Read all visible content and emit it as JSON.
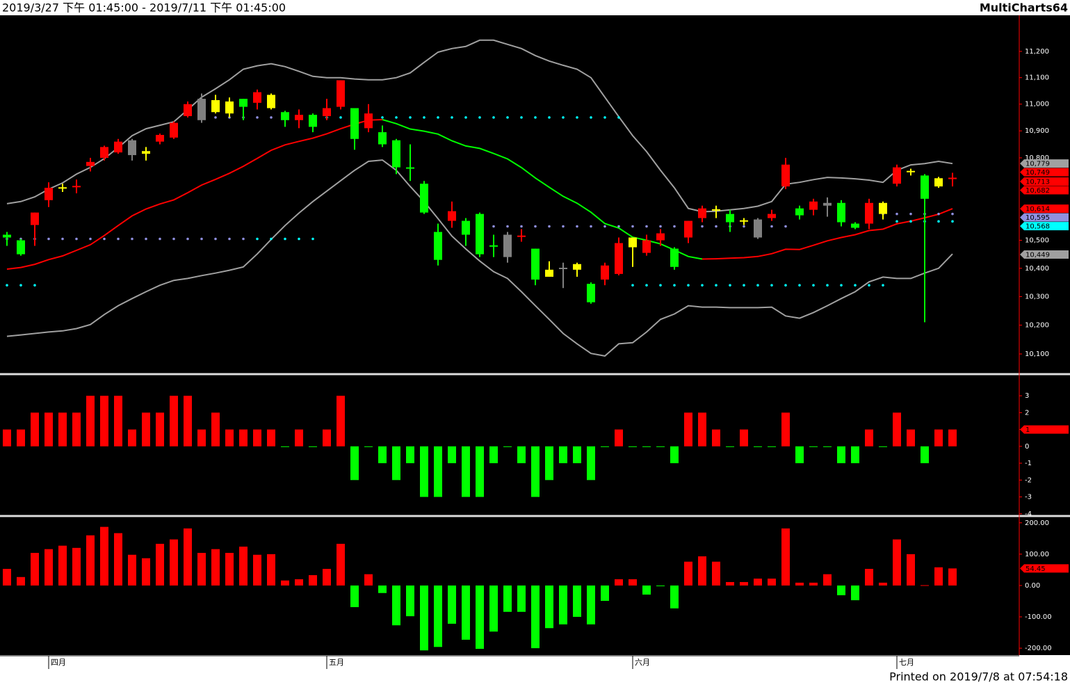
{
  "header": {
    "range": "2019/3/27 下午 01:45:00 - 2019/7/11 下午 01:45:00",
    "app": "MultiCharts64"
  },
  "footer": "Printed on 2019/7/8 at 07:54:18",
  "chart_data": [
    {
      "type": "candlestick",
      "log_scale": true,
      "categories": [
        null,
        null,
        null,
        null,
        null,
        null,
        null,
        null,
        null,
        null,
        null,
        null,
        null,
        null,
        null,
        null,
        null,
        null,
        null,
        null,
        null,
        null,
        null,
        null,
        null,
        null,
        null,
        null,
        null,
        null,
        null,
        null,
        null,
        null,
        null,
        null,
        null,
        null,
        null,
        null,
        null,
        null,
        null,
        null,
        null,
        null,
        null,
        null,
        null,
        null,
        null,
        null,
        null,
        null,
        null,
        null,
        null,
        null,
        null,
        null,
        null,
        null,
        null,
        null,
        null,
        null,
        null,
        null,
        null
      ],
      "xticks": [
        {
          "value": 3,
          "label": "四月"
        },
        {
          "value": 23,
          "label": "五月"
        },
        {
          "value": 45,
          "label": "六月"
        },
        {
          "value": 64,
          "label": "七月"
        }
      ],
      "ylim": [
        10033,
        11339
      ],
      "yticks": [
        {
          "value": 11200,
          "label": "11,200"
        },
        {
          "value": 11100,
          "label": "11,100"
        },
        {
          "value": 11000,
          "label": "11,000"
        },
        {
          "value": 10900,
          "label": "10,900"
        },
        {
          "value": 10800,
          "label": "10,800"
        },
        {
          "value": 10500,
          "label": "10,500"
        },
        {
          "value": 10400,
          "label": "10,400"
        },
        {
          "value": 10300,
          "label": "10,300"
        },
        {
          "value": 10200,
          "label": "10,200"
        },
        {
          "value": 10100,
          "label": "10,100"
        }
      ],
      "open": [
        10520,
        10500,
        10555,
        10645,
        10690,
        10693,
        10770,
        10800,
        10820,
        10865,
        10825,
        10860,
        10875,
        10955,
        11020,
        11015,
        11010,
        11020,
        11005,
        11035,
        10970,
        10940,
        10960,
        10955,
        10990,
        10985,
        10910,
        10895,
        10865,
        10765,
        10705,
        10530,
        10570,
        10570,
        10595,
        10482,
        10520,
        10513,
        10470,
        10395,
        10402,
        10415,
        10345,
        10360,
        10380,
        10510,
        10455,
        10500,
        10470,
        10510,
        10580,
        10608,
        10595,
        10568,
        10575,
        10580,
        10695,
        10615,
        10610,
        10635,
        10635,
        10560,
        10560,
        10635,
        10705,
        10748,
        10735,
        10725,
        10723
      ],
      "high": [
        10530,
        10505,
        10600,
        10710,
        10705,
        10720,
        10800,
        10845,
        10870,
        10870,
        10840,
        10890,
        10935,
        11010,
        11040,
        11035,
        11025,
        11020,
        11055,
        11040,
        10975,
        10980,
        10965,
        11020,
        11090,
        10985,
        11000,
        10920,
        10870,
        10850,
        10715,
        10560,
        10640,
        10580,
        10600,
        10520,
        10530,
        10540,
        10470,
        10425,
        10420,
        10420,
        10350,
        10420,
        10510,
        10510,
        10520,
        10540,
        10475,
        10570,
        10625,
        10625,
        10610,
        10580,
        10580,
        10610,
        10800,
        10625,
        10650,
        10655,
        10645,
        10565,
        10650,
        10640,
        10775,
        10760,
        10740,
        10730,
        10745
      ],
      "low": [
        10480,
        10445,
        10480,
        10620,
        10675,
        10670,
        10750,
        10790,
        10815,
        10790,
        10790,
        10850,
        10870,
        10950,
        10930,
        10965,
        10950,
        10940,
        10980,
        10980,
        10915,
        10910,
        10895,
        10940,
        10980,
        10830,
        10895,
        10840,
        10740,
        10715,
        10595,
        10410,
        10545,
        10480,
        10440,
        10440,
        10420,
        10495,
        10340,
        10370,
        10330,
        10370,
        10275,
        10340,
        10375,
        10405,
        10445,
        10480,
        10395,
        10490,
        10565,
        10580,
        10530,
        10555,
        10505,
        10570,
        10685,
        10575,
        10590,
        10585,
        10550,
        10540,
        10540,
        10575,
        10695,
        10735,
        10210,
        10690,
        10695
      ],
      "close": [
        10510,
        10450,
        10600,
        10690,
        10692,
        10697,
        10785,
        10840,
        10860,
        10810,
        10815,
        10885,
        10930,
        11000,
        10940,
        10970,
        10965,
        10990,
        11045,
        10985,
        10940,
        10960,
        10915,
        10985,
        11090,
        10870,
        10965,
        10850,
        10765,
        10760,
        10600,
        10430,
        10605,
        10520,
        10450,
        10478,
        10440,
        10517,
        10360,
        10370,
        10398,
        10395,
        10280,
        10410,
        10490,
        10475,
        10500,
        10525,
        10405,
        10570,
        10615,
        10612,
        10565,
        10572,
        10510,
        10595,
        10775,
        10590,
        10640,
        10625,
        10565,
        10545,
        10635,
        10595,
        10765,
        10752,
        10650,
        10695,
        10727
      ],
      "colors": [
        "#00ff00",
        "#00ff00",
        "#ff0000",
        "#ff0000",
        "#ffff00",
        "#ff0000",
        "#ff0000",
        "#ff0000",
        "#ff0000",
        "#808080",
        "#ffff00",
        "#ff0000",
        "#ff0000",
        "#ff0000",
        "#808080",
        "#ffff00",
        "#ffff00",
        "#00ff00",
        "#ff0000",
        "#ffff00",
        "#00ff00",
        "#ff0000",
        "#00ff00",
        "#ff0000",
        "#ff0000",
        "#00ff00",
        "#ff0000",
        "#00ff00",
        "#00ff00",
        "#00ff00",
        "#00ff00",
        "#00ff00",
        "#ff0000",
        "#00ff00",
        "#00ff00",
        "#00ff00",
        "#808080",
        "#ff0000",
        "#00ff00",
        "#ffff00",
        "#808080",
        "#ffff00",
        "#00ff00",
        "#ff0000",
        "#ff0000",
        "#ffff00",
        "#ff0000",
        "#ff0000",
        "#00ff00",
        "#ff0000",
        "#ff0000",
        "#ffff00",
        "#00ff00",
        "#ffff00",
        "#808080",
        "#ff0000",
        "#ff0000",
        "#00ff00",
        "#ff0000",
        "#808080",
        "#00ff00",
        "#00ff00",
        "#ff0000",
        "#ffff00",
        "#ff0000",
        "#ffff00",
        "#00ff00",
        "#ffff00",
        "#ff0000"
      ],
      "overlays": [
        {
          "color": "#a0a0a0",
          "values": [
            10632,
            10640,
            10657,
            10685,
            10708,
            10740,
            10765,
            10797,
            10838,
            10882,
            10908,
            10921,
            10934,
            10979,
            11026,
            11058,
            11092,
            11132,
            11145,
            11153,
            11142,
            11124,
            11105,
            11100,
            11100,
            11095,
            11092,
            11092,
            11100,
            11118,
            11158,
            11197,
            11211,
            11219,
            11243,
            11243,
            11227,
            11211,
            11184,
            11163,
            11147,
            11132,
            11100,
            11026,
            10953,
            10882,
            10823,
            10754,
            10690,
            10615,
            10603,
            10605,
            10610,
            10615,
            10623,
            10640,
            10703,
            10710,
            10720,
            10728,
            10726,
            10723,
            10718,
            10710,
            10754,
            10774,
            10779,
            10787,
            10779
          ]
        },
        {
          "color": "#a0a0a0",
          "values": [
            10161,
            10166,
            10171,
            10176,
            10180,
            10188,
            10202,
            10237,
            10268,
            10293,
            10317,
            10340,
            10357,
            10364,
            10374,
            10383,
            10393,
            10405,
            10451,
            10503,
            10553,
            10598,
            10640,
            10678,
            10716,
            10754,
            10787,
            10792,
            10754,
            10695,
            10640,
            10578,
            10515,
            10469,
            10426,
            10388,
            10364,
            10317,
            10268,
            10220,
            10171,
            10135,
            10102,
            10093,
            10135,
            10139,
            10176,
            10220,
            10239,
            10268,
            10263,
            10263,
            10261,
            10261,
            10261,
            10263,
            10232,
            10224,
            10244,
            10268,
            10293,
            10317,
            10352,
            10369,
            10364,
            10364,
            10383,
            10400,
            10451
          ]
        },
        {
          "color": "#ff0000",
          "values": [
            10397,
            10403,
            10414,
            10431,
            10444,
            10464,
            10484,
            10517,
            10553,
            10588,
            10613,
            10631,
            10646,
            10672,
            10700,
            10721,
            10743,
            10769,
            10798,
            10828,
            10848,
            10861,
            10873,
            10889,
            10908,
            10925,
            10940,
            10942,
            null,
            null,
            null,
            null,
            null,
            null,
            null,
            null,
            null,
            null,
            null,
            null,
            null,
            null,
            null,
            null,
            null,
            null,
            null,
            null,
            null,
            null,
            10433,
            10434,
            10436,
            10438,
            10442,
            10452,
            10468,
            10467,
            10482,
            10498,
            10510,
            10520,
            10535,
            10540,
            10559,
            10569,
            10581,
            10594,
            10614
          ]
        },
        {
          "color": "#00ff00",
          "values": [
            null,
            null,
            null,
            null,
            null,
            null,
            null,
            null,
            null,
            null,
            null,
            null,
            null,
            null,
            null,
            null,
            null,
            null,
            null,
            null,
            null,
            null,
            null,
            null,
            null,
            null,
            null,
            10942,
            10927,
            10907,
            10899,
            10888,
            10863,
            10844,
            10835,
            10816,
            10796,
            10764,
            10726,
            10692,
            10659,
            10634,
            10601,
            10560,
            10544,
            10511,
            10500,
            10487,
            10465,
            10442,
            10433,
            null,
            null,
            null,
            null,
            null,
            null,
            null,
            null,
            null,
            null,
            null,
            null,
            null,
            null,
            null,
            null,
            null,
            null
          ]
        }
      ],
      "levels": [
        {
          "value": 10950,
          "from": 14,
          "to": 22,
          "color": "#8f8fdf"
        },
        {
          "value": 10950,
          "from": 23,
          "to": 44,
          "color": "#00ffff"
        },
        {
          "value": 10505,
          "from": 0,
          "to": 17,
          "color": "#8f8fdf"
        },
        {
          "value": 10505,
          "from": 18,
          "to": 22,
          "color": "#00ffff"
        },
        {
          "value": 10340,
          "from": 0,
          "to": 2,
          "color": "#00ffff"
        },
        {
          "value": 10550,
          "from": 34,
          "to": 56,
          "color": "#8f8fdf"
        },
        {
          "value": 10340,
          "from": 45,
          "to": 63,
          "color": "#00ffff"
        },
        {
          "value": 10595,
          "from": 63,
          "to": 68,
          "color": "#8f8fdf"
        },
        {
          "value": 10568,
          "from": 64,
          "to": 68,
          "color": "#00ffff"
        }
      ],
      "price_tags": [
        {
          "value": 10779,
          "label": "10,779",
          "color": "#a0a0a0"
        },
        {
          "value": 10749,
          "label": "10,749",
          "color": "#ff0000"
        },
        {
          "value": 10713,
          "label": "10,713",
          "color": "#ff0000"
        },
        {
          "value": 10682,
          "label": "10,682",
          "color": "#ff0000"
        },
        {
          "value": 10614,
          "label": "10,614",
          "color": "#ff0000"
        },
        {
          "value": 10595,
          "label": "10,595",
          "color": "#9090e0"
        },
        {
          "value": 10568,
          "label": "10,568",
          "color": "#00ffff"
        },
        {
          "value": 10449,
          "label": "10,449",
          "color": "#a0a0a0"
        }
      ]
    },
    {
      "type": "bar",
      "up_color": "#ff0000",
      "down_color": "#00ff00",
      "tag_color": "#ff0000",
      "ylim": [
        -4.05,
        4.2
      ],
      "yticks": [
        3,
        2,
        1,
        0,
        -1,
        -2,
        -3,
        -4
      ],
      "values": [
        1,
        1,
        2,
        2,
        2,
        2,
        3,
        3,
        3,
        1,
        2,
        2,
        3,
        3,
        1,
        2,
        1,
        1,
        1,
        1,
        0,
        1,
        0,
        1,
        3,
        -2,
        0,
        -1,
        -2,
        -1,
        -3,
        -3,
        -1,
        -3,
        -3,
        -1,
        0,
        -1,
        -3,
        -2,
        -1,
        -1,
        -2,
        0,
        1,
        0,
        0,
        0,
        -1,
        2,
        2,
        1,
        0,
        1,
        0,
        0,
        2,
        -1,
        0,
        0,
        -1,
        -1,
        1,
        0,
        2,
        1,
        -1,
        1,
        1
      ]
    },
    {
      "type": "bar",
      "up_color": "#ff0000",
      "down_color": "#00ff00",
      "tag_color": "#ff0000",
      "ylim": [
        -222,
        215
      ],
      "yticks": [
        {
          "value": 200,
          "label": "200.00"
        },
        {
          "value": 100,
          "label": "100.00"
        },
        {
          "value": 0,
          "label": "0.00"
        },
        {
          "value": -100,
          "label": "-100.00"
        },
        {
          "value": -200,
          "label": "-200.00"
        }
      ],
      "values": [
        53,
        27,
        104,
        116,
        127,
        120,
        160,
        187,
        167,
        98,
        87,
        133,
        147,
        182,
        104,
        116,
        104,
        124,
        98,
        100,
        16,
        20,
        33,
        53,
        133,
        -69,
        36,
        -24,
        -127,
        -98,
        -207,
        -196,
        -122,
        -173,
        -202,
        -147,
        -84,
        -84,
        -200,
        -136,
        -124,
        -100,
        -124,
        -49,
        20,
        20,
        -29,
        -2,
        -73,
        76,
        93,
        76,
        11,
        11,
        22,
        22,
        182,
        9,
        9,
        36,
        -31,
        -47,
        53,
        9,
        147,
        100,
        1,
        58,
        54.45
      ]
    }
  ]
}
